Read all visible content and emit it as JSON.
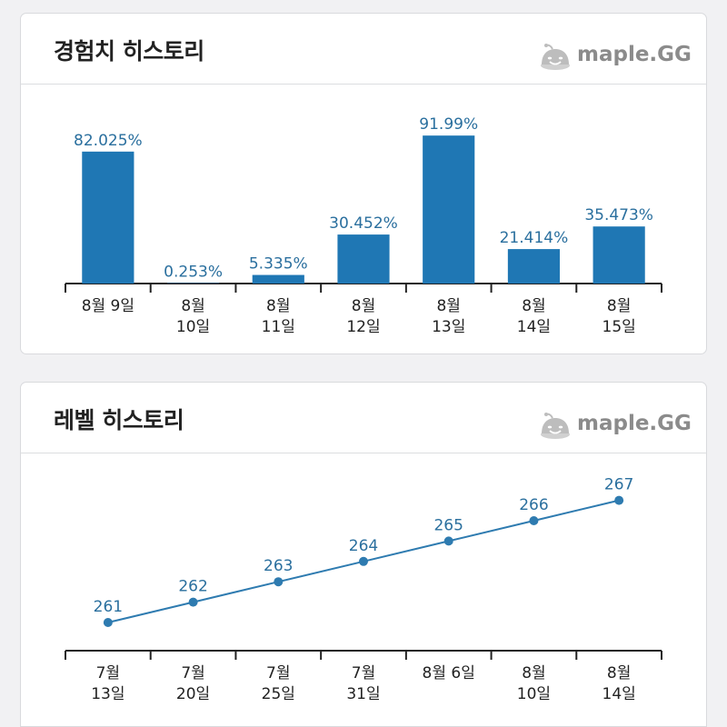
{
  "exp_history": {
    "title": "경험치 히스토리",
    "logo_text": "maple.GG",
    "chart_data": {
      "type": "bar",
      "categories": [
        [
          "8월 9일"
        ],
        [
          "8월",
          "10일"
        ],
        [
          "8월",
          "11일"
        ],
        [
          "8월",
          "12일"
        ],
        [
          "8월",
          "13일"
        ],
        [
          "8월",
          "14일"
        ],
        [
          "8월",
          "15일"
        ]
      ],
      "values": [
        82.025,
        0.253,
        5.335,
        30.452,
        91.99,
        21.414,
        35.473
      ],
      "data_labels": [
        "82.025%",
        "0.253%",
        "5.335%",
        "30.452%",
        "91.99%",
        "21.414%",
        "35.473%"
      ],
      "ylim": [
        0,
        100
      ],
      "grid": false,
      "colors": {
        "bar": "#1f77b4",
        "label": "#2a6f9e"
      }
    }
  },
  "level_history": {
    "title": "레벨 히스토리",
    "logo_text": "maple.GG",
    "chart_data": {
      "type": "line",
      "categories": [
        [
          "7월",
          "13일"
        ],
        [
          "7월",
          "20일"
        ],
        [
          "7월",
          "25일"
        ],
        [
          "7월",
          "31일"
        ],
        [
          "8월 6일"
        ],
        [
          "8월",
          "10일"
        ],
        [
          "8월",
          "14일"
        ]
      ],
      "values": [
        261,
        262,
        263,
        264,
        265,
        266,
        267
      ],
      "data_labels": [
        "261",
        "262",
        "263",
        "264",
        "265",
        "266",
        "267"
      ],
      "ylim": [
        260,
        268
      ],
      "grid": false,
      "colors": {
        "line": "#2e7bb0",
        "label": "#2a6f9e"
      }
    }
  }
}
